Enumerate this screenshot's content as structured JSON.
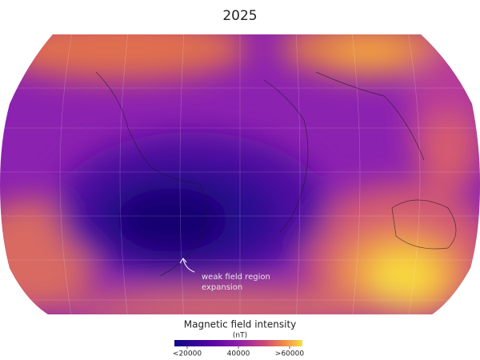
{
  "title": "2025",
  "annotation": {
    "lines": [
      "weak field region",
      "expansion"
    ]
  },
  "colorbar": {
    "title": "Magnetic field intensity",
    "unit": "(nT)",
    "lim": [
      20000,
      60000
    ],
    "ticks": [
      {
        "value": 20000,
        "label": "<20000"
      },
      40000,
      {
        "value": 60000,
        "label": ">60000"
      }
    ]
  }
}
